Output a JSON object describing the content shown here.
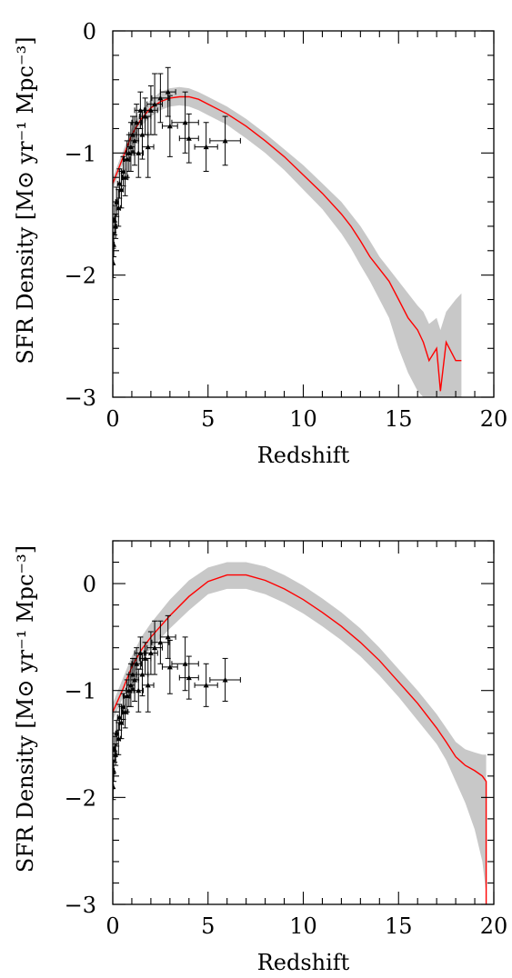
{
  "chart_data": [
    {
      "type": "line",
      "xlabel": "Redshift",
      "ylabel": "SFR Density [M⊙ yr⁻¹ Mpc⁻³]",
      "xlim": [
        0,
        20
      ],
      "ylim": [
        -3,
        0
      ],
      "x_ticks": [
        "0",
        "5",
        "10",
        "15",
        "20"
      ],
      "y_ticks": [
        "0",
        "−1",
        "−2",
        "−3"
      ],
      "colors": {
        "model_line": "#ff0000",
        "model_band": "#c8c8c8",
        "observations": "#000000"
      },
      "model": {
        "x": [
          0,
          0.5,
          1,
          1.5,
          2,
          2.5,
          3,
          3.5,
          4,
          4.5,
          5,
          6,
          7,
          8,
          9,
          10,
          11,
          12,
          12.5,
          13,
          13.5,
          14,
          14.5,
          15,
          15.5,
          16,
          16.3,
          16.6,
          17,
          17.2,
          17.5,
          18,
          18.3
        ],
        "y": [
          -1.25,
          -1.05,
          -0.85,
          -0.72,
          -0.63,
          -0.58,
          -0.55,
          -0.54,
          -0.54,
          -0.56,
          -0.6,
          -0.68,
          -0.78,
          -0.9,
          -1.03,
          -1.18,
          -1.33,
          -1.5,
          -1.6,
          -1.72,
          -1.85,
          -1.95,
          -2.05,
          -2.2,
          -2.35,
          -2.45,
          -2.55,
          -2.7,
          -2.6,
          -2.95,
          -2.55,
          -2.7,
          -2.7
        ],
        "band_upper": [
          -1.2,
          -1.0,
          -0.8,
          -0.66,
          -0.56,
          -0.5,
          -0.47,
          -0.46,
          -0.47,
          -0.5,
          -0.54,
          -0.62,
          -0.72,
          -0.84,
          -0.97,
          -1.1,
          -1.25,
          -1.4,
          -1.5,
          -1.6,
          -1.72,
          -1.85,
          -1.95,
          -2.05,
          -2.15,
          -2.25,
          -2.3,
          -2.4,
          -2.35,
          -2.45,
          -2.3,
          -2.2,
          -2.15
        ],
        "band_lower": [
          -1.3,
          -1.1,
          -0.9,
          -0.78,
          -0.7,
          -0.65,
          -0.62,
          -0.61,
          -0.62,
          -0.65,
          -0.69,
          -0.77,
          -0.88,
          -1.0,
          -1.14,
          -1.3,
          -1.46,
          -1.66,
          -1.78,
          -1.92,
          -2.05,
          -2.2,
          -2.35,
          -2.6,
          -2.8,
          -2.95,
          -3.0,
          -3.0,
          -3.0,
          -3.0,
          -3.0,
          -3.0,
          -3.0
        ]
      },
      "observations": [
        {
          "x": 0.02,
          "y": -1.9,
          "xerr": 0.02,
          "yerr": 0.12
        },
        {
          "x": 0.05,
          "y": -1.75,
          "xerr": 0.03,
          "yerr": 0.1
        },
        {
          "x": 0.1,
          "y": -1.55,
          "xerr": 0.05,
          "yerr": 0.12
        },
        {
          "x": 0.15,
          "y": -1.6,
          "xerr": 0.05,
          "yerr": 0.1
        },
        {
          "x": 0.2,
          "y": -1.4,
          "xerr": 0.05,
          "yerr": 0.12
        },
        {
          "x": 0.3,
          "y": -1.45,
          "xerr": 0.1,
          "yerr": 0.15
        },
        {
          "x": 0.35,
          "y": -1.25,
          "xerr": 0.1,
          "yerr": 0.12
        },
        {
          "x": 0.45,
          "y": -1.3,
          "xerr": 0.1,
          "yerr": 0.15
        },
        {
          "x": 0.55,
          "y": -1.15,
          "xerr": 0.1,
          "yerr": 0.12
        },
        {
          "x": 0.65,
          "y": -1.2,
          "xerr": 0.15,
          "yerr": 0.15
        },
        {
          "x": 0.75,
          "y": -1.05,
          "xerr": 0.15,
          "yerr": 0.15
        },
        {
          "x": 0.85,
          "y": -1.0,
          "xerr": 0.15,
          "yerr": 0.15
        },
        {
          "x": 0.95,
          "y": -0.95,
          "xerr": 0.2,
          "yerr": 0.2
        },
        {
          "x": 1.05,
          "y": -0.85,
          "xerr": 0.2,
          "yerr": 0.15
        },
        {
          "x": 1.15,
          "y": -0.9,
          "xerr": 0.2,
          "yerr": 0.2
        },
        {
          "x": 1.25,
          "y": -0.75,
          "xerr": 0.25,
          "yerr": 0.15
        },
        {
          "x": 1.35,
          "y": -1.0,
          "xerr": 0.25,
          "yerr": 0.2
        },
        {
          "x": 1.45,
          "y": -0.65,
          "xerr": 0.3,
          "yerr": 0.15
        },
        {
          "x": 1.55,
          "y": -0.85,
          "xerr": 0.3,
          "yerr": 0.2
        },
        {
          "x": 1.7,
          "y": -0.7,
          "xerr": 0.3,
          "yerr": 0.15
        },
        {
          "x": 1.85,
          "y": -0.95,
          "xerr": 0.3,
          "yerr": 0.25
        },
        {
          "x": 2.0,
          "y": -0.65,
          "xerr": 0.35,
          "yerr": 0.2
        },
        {
          "x": 2.2,
          "y": -0.6,
          "xerr": 0.4,
          "yerr": 0.25
        },
        {
          "x": 2.5,
          "y": -0.55,
          "xerr": 0.45,
          "yerr": 0.2
        },
        {
          "x": 2.9,
          "y": -0.5,
          "xerr": 0.4,
          "yerr": 0.2
        },
        {
          "x": 3.0,
          "y": -0.78,
          "xerr": 0.4,
          "yerr": 0.25
        },
        {
          "x": 3.8,
          "y": -0.75,
          "xerr": 0.7,
          "yerr": 0.25
        },
        {
          "x": 4.0,
          "y": -0.88,
          "xerr": 0.5,
          "yerr": 0.2
        },
        {
          "x": 4.9,
          "y": -0.95,
          "xerr": 0.6,
          "yerr": 0.2
        },
        {
          "x": 5.9,
          "y": -0.9,
          "xerr": 0.8,
          "yerr": 0.2
        }
      ]
    },
    {
      "type": "line",
      "xlabel": "Redshift",
      "ylabel": "SFR Density [M⊙ yr⁻¹ Mpc⁻³]",
      "xlim": [
        0,
        20
      ],
      "ylim": [
        -3,
        0.4
      ],
      "x_ticks": [
        "0",
        "5",
        "10",
        "15",
        "20"
      ],
      "y_ticks": [
        "0",
        "−1",
        "−2",
        "−3"
      ],
      "colors": {
        "model_line": "#ff0000",
        "model_band": "#c8c8c8",
        "observations": "#000000"
      },
      "model": {
        "x": [
          0,
          0.5,
          1,
          1.5,
          2,
          3,
          4,
          5,
          6,
          7,
          8,
          9,
          10,
          11,
          12,
          13,
          14,
          15,
          16,
          17,
          17.5,
          18,
          18.5,
          19,
          19.4,
          19.6,
          19.6
        ],
        "y": [
          -1.2,
          -1.0,
          -0.78,
          -0.62,
          -0.5,
          -0.3,
          -0.12,
          0.02,
          0.08,
          0.08,
          0.03,
          -0.05,
          -0.15,
          -0.27,
          -0.4,
          -0.55,
          -0.72,
          -0.92,
          -1.12,
          -1.35,
          -1.48,
          -1.62,
          -1.7,
          -1.75,
          -1.8,
          -1.85,
          -3.0
        ],
        "band_upper": [
          -1.12,
          -0.9,
          -0.68,
          -0.5,
          -0.37,
          -0.15,
          0.03,
          0.15,
          0.2,
          0.2,
          0.16,
          0.08,
          -0.02,
          -0.14,
          -0.27,
          -0.42,
          -0.6,
          -0.8,
          -1.0,
          -1.22,
          -1.35,
          -1.48,
          -1.55,
          -1.58,
          -1.6,
          -1.6,
          -1.6
        ],
        "band_lower": [
          -1.28,
          -1.08,
          -0.88,
          -0.72,
          -0.61,
          -0.42,
          -0.25,
          -0.1,
          -0.05,
          -0.05,
          -0.1,
          -0.18,
          -0.28,
          -0.4,
          -0.53,
          -0.68,
          -0.86,
          -1.06,
          -1.28,
          -1.5,
          -1.65,
          -1.85,
          -2.05,
          -2.3,
          -2.6,
          -2.9,
          -3.0
        ]
      },
      "observations": [
        {
          "x": 0.02,
          "y": -1.9,
          "xerr": 0.02,
          "yerr": 0.12
        },
        {
          "x": 0.05,
          "y": -1.75,
          "xerr": 0.03,
          "yerr": 0.1
        },
        {
          "x": 0.1,
          "y": -1.55,
          "xerr": 0.05,
          "yerr": 0.12
        },
        {
          "x": 0.15,
          "y": -1.6,
          "xerr": 0.05,
          "yerr": 0.1
        },
        {
          "x": 0.2,
          "y": -1.4,
          "xerr": 0.05,
          "yerr": 0.12
        },
        {
          "x": 0.3,
          "y": -1.45,
          "xerr": 0.1,
          "yerr": 0.15
        },
        {
          "x": 0.35,
          "y": -1.25,
          "xerr": 0.1,
          "yerr": 0.12
        },
        {
          "x": 0.45,
          "y": -1.3,
          "xerr": 0.1,
          "yerr": 0.15
        },
        {
          "x": 0.55,
          "y": -1.15,
          "xerr": 0.1,
          "yerr": 0.12
        },
        {
          "x": 0.65,
          "y": -1.2,
          "xerr": 0.15,
          "yerr": 0.15
        },
        {
          "x": 0.75,
          "y": -1.05,
          "xerr": 0.15,
          "yerr": 0.15
        },
        {
          "x": 0.85,
          "y": -1.0,
          "xerr": 0.15,
          "yerr": 0.15
        },
        {
          "x": 0.95,
          "y": -0.95,
          "xerr": 0.2,
          "yerr": 0.2
        },
        {
          "x": 1.05,
          "y": -0.85,
          "xerr": 0.2,
          "yerr": 0.15
        },
        {
          "x": 1.15,
          "y": -0.9,
          "xerr": 0.2,
          "yerr": 0.2
        },
        {
          "x": 1.25,
          "y": -0.75,
          "xerr": 0.25,
          "yerr": 0.15
        },
        {
          "x": 1.35,
          "y": -1.0,
          "xerr": 0.25,
          "yerr": 0.2
        },
        {
          "x": 1.45,
          "y": -0.65,
          "xerr": 0.3,
          "yerr": 0.15
        },
        {
          "x": 1.55,
          "y": -0.85,
          "xerr": 0.3,
          "yerr": 0.2
        },
        {
          "x": 1.7,
          "y": -0.7,
          "xerr": 0.3,
          "yerr": 0.15
        },
        {
          "x": 1.85,
          "y": -0.95,
          "xerr": 0.3,
          "yerr": 0.25
        },
        {
          "x": 2.0,
          "y": -0.65,
          "xerr": 0.35,
          "yerr": 0.2
        },
        {
          "x": 2.2,
          "y": -0.6,
          "xerr": 0.4,
          "yerr": 0.25
        },
        {
          "x": 2.5,
          "y": -0.55,
          "xerr": 0.45,
          "yerr": 0.2
        },
        {
          "x": 2.9,
          "y": -0.5,
          "xerr": 0.4,
          "yerr": 0.2
        },
        {
          "x": 3.0,
          "y": -0.78,
          "xerr": 0.4,
          "yerr": 0.25
        },
        {
          "x": 3.8,
          "y": -0.75,
          "xerr": 0.7,
          "yerr": 0.25
        },
        {
          "x": 4.0,
          "y": -0.88,
          "xerr": 0.5,
          "yerr": 0.2
        },
        {
          "x": 4.9,
          "y": -0.95,
          "xerr": 0.6,
          "yerr": 0.2
        },
        {
          "x": 5.9,
          "y": -0.9,
          "xerr": 0.8,
          "yerr": 0.2
        }
      ]
    }
  ]
}
